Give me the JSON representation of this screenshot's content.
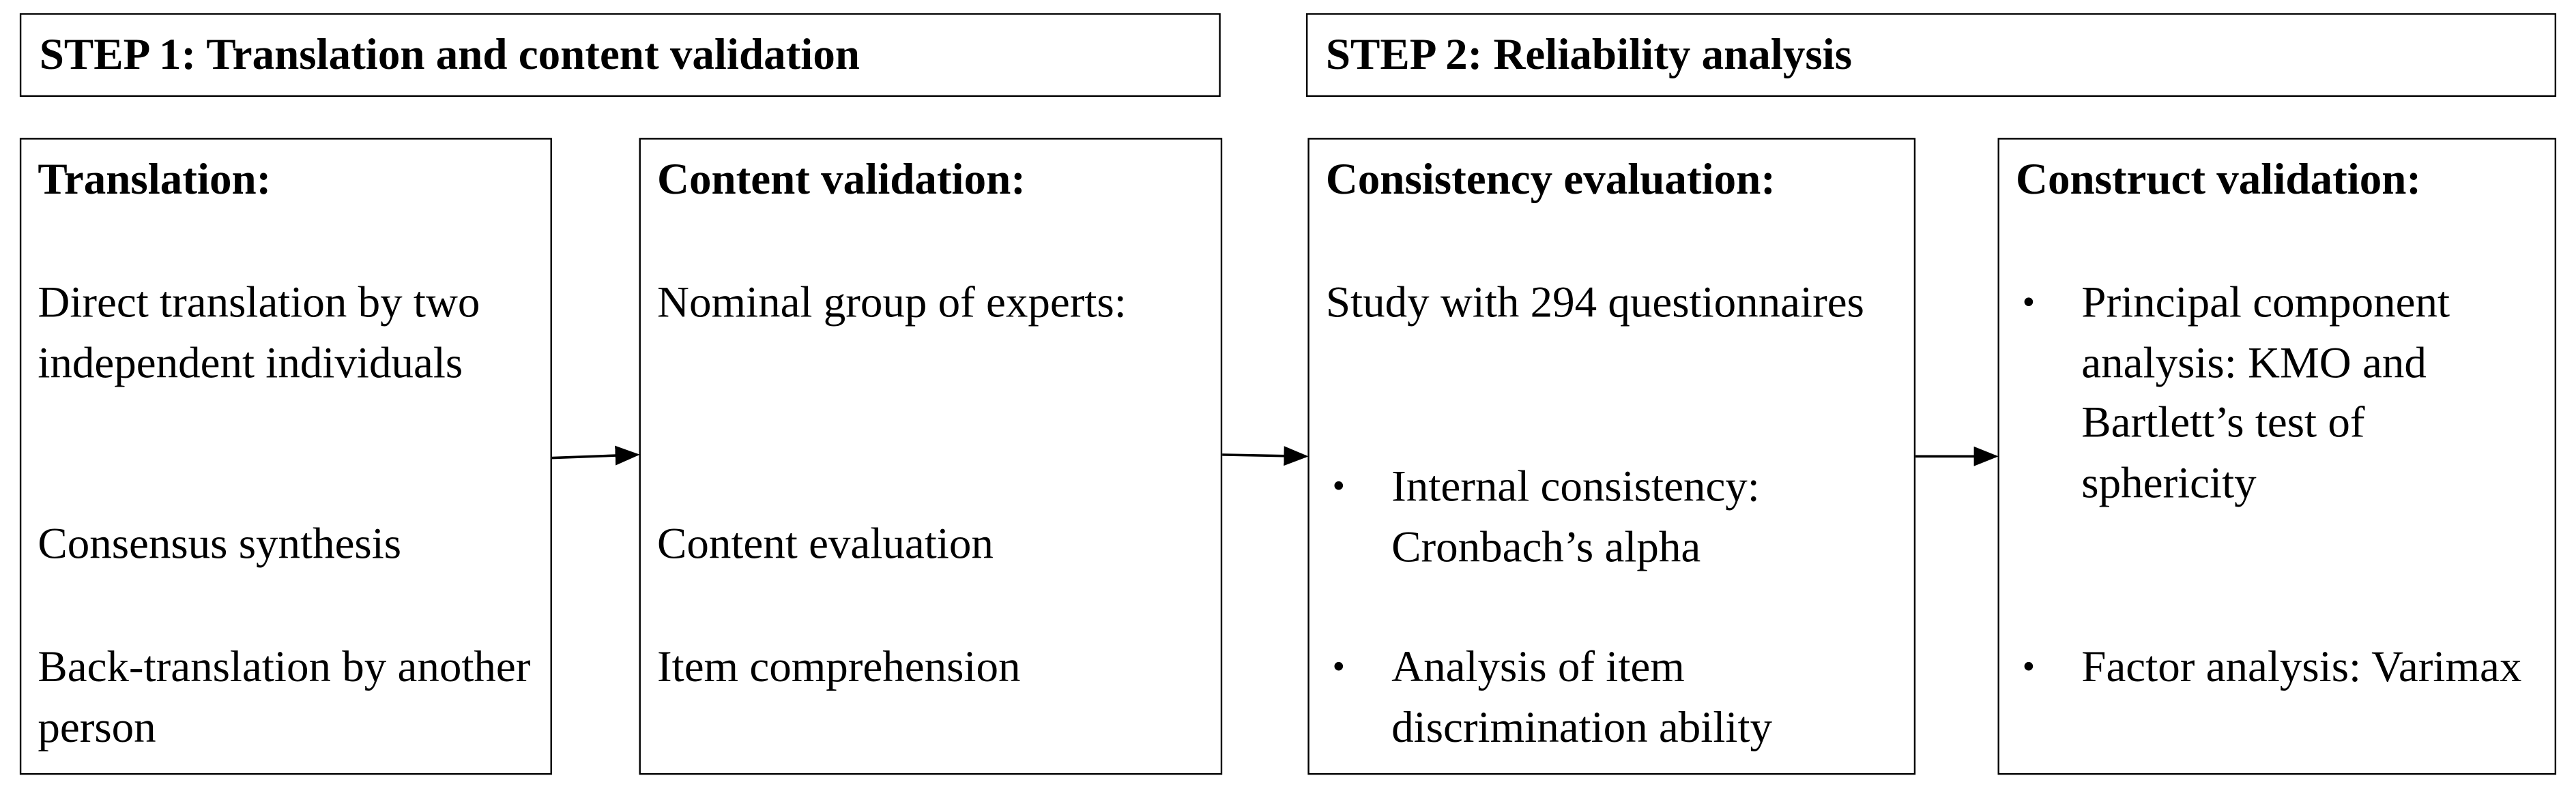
{
  "steps": [
    {
      "title": "STEP 1: Translation and content validation"
    },
    {
      "title": "STEP 2: Reliability analysis"
    }
  ],
  "boxes": [
    {
      "heading": "Translation:",
      "items": [
        {
          "text": "Direct translation by two independent individuals"
        },
        {
          "text": "Consensus synthesis"
        },
        {
          "text": "Back-translation by another person"
        }
      ]
    },
    {
      "heading": "Content validation:",
      "items": [
        {
          "text": "Nominal group of experts:"
        },
        {
          "text": "Content evaluation"
        },
        {
          "text": "Item comprehension"
        }
      ]
    },
    {
      "heading": "Consistency evaluation:",
      "items": [
        {
          "text": "Study with 294 questionnaires"
        },
        {
          "text": "Internal consistency: Cronbach’s alpha",
          "bullet": "•"
        },
        {
          "text": "Analysis of item discrimination ability",
          "bullet": "•"
        }
      ]
    },
    {
      "heading": "Construct validation:",
      "items": [
        {
          "text": "Principal component analysis: KMO and Bartlett’s test of sphericity",
          "bullet": "•"
        },
        {
          "text": "Factor analysis: Varimax",
          "bullet": "•"
        }
      ]
    }
  ]
}
